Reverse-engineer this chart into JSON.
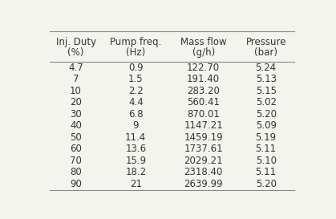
{
  "headers": [
    [
      "Inj. Duty",
      "Pump freq.",
      "Mass flow",
      "Pressure"
    ],
    [
      "(%)",
      "(Hz)",
      "(g/h)",
      "(bar)"
    ]
  ],
  "rows": [
    [
      "4.7",
      "0.9",
      "122.70",
      "5.24"
    ],
    [
      "7",
      "1.5",
      "191.40",
      "5.13"
    ],
    [
      "10",
      "2.2",
      "283.20",
      "5.15"
    ],
    [
      "20",
      "4.4",
      "560.41",
      "5.02"
    ],
    [
      "30",
      "6.8",
      "870.01",
      "5.20"
    ],
    [
      "40",
      "9",
      "1147.21",
      "5.09"
    ],
    [
      "50",
      "11.4",
      "1459.19",
      "5.19"
    ],
    [
      "60",
      "13.6",
      "1737.61",
      "5.11"
    ],
    [
      "70",
      "15.9",
      "2029.21",
      "5.10"
    ],
    [
      "80",
      "18.2",
      "2318.40",
      "5.11"
    ],
    [
      "90",
      "21",
      "2639.99",
      "5.20"
    ]
  ],
  "background_color": "#f4f4ee",
  "text_color": "#333333",
  "header_fontsize": 8.5,
  "data_fontsize": 8.5,
  "figsize": [
    4.19,
    2.73
  ],
  "dpi": 100,
  "line_color": "#888888",
  "line_lw": 0.8
}
